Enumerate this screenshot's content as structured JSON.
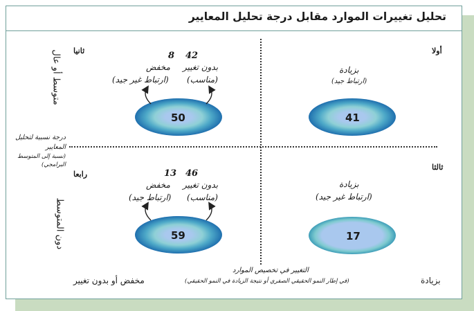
{
  "title": "تحليل تغييرات الموارد مقابل درجة تحليل المعايير",
  "quadrants": {
    "first": {
      "label": "أولا",
      "value": "41",
      "top_label": "بزيادة",
      "sub_label": "(ارتباط جيد)"
    },
    "second": {
      "label": "ثانيا",
      "value": "50",
      "left": {
        "count": "8",
        "label": "مخفض",
        "sub": "(ارتباط غير جيد)"
      },
      "right": {
        "count": "42",
        "label": "بدون تغيير",
        "sub": "(مناسب)"
      }
    },
    "third": {
      "label": "ثالثا",
      "value": "17",
      "top_label": "بزيادة",
      "sub_label": "(ارتباط غير جيد)"
    },
    "fourth": {
      "label": "رابعا",
      "value": "59",
      "left": {
        "count": "13",
        "label": "مخفض",
        "sub": "(ارتباط جيد)"
      },
      "right": {
        "count": "46",
        "label": "بدون تغيير",
        "sub": "(مناسب)"
      }
    }
  },
  "y_axis": {
    "title": "درجة نسبية لتحليل المعايير",
    "subtitle": "(نسبة إلى المتوسط البرامجي)",
    "upper": "متوسط أو عال",
    "lower": "دون المتوسط"
  },
  "x_axis": {
    "title": "التغيير في تخصيص الموارد",
    "subtitle": "(في إطار النمو الحقيقي الصفري أو نتيجة الزيادة في النمو الحقيقي)",
    "left": "مخفض أو بدون تغيير",
    "right": "بزيادة"
  },
  "colors": {
    "dark": "#1f6fae",
    "mid": "#5fb7c9",
    "light": "#a9c8ee",
    "frame": "#6f9f9a",
    "shadow": "#c9dcc1"
  }
}
